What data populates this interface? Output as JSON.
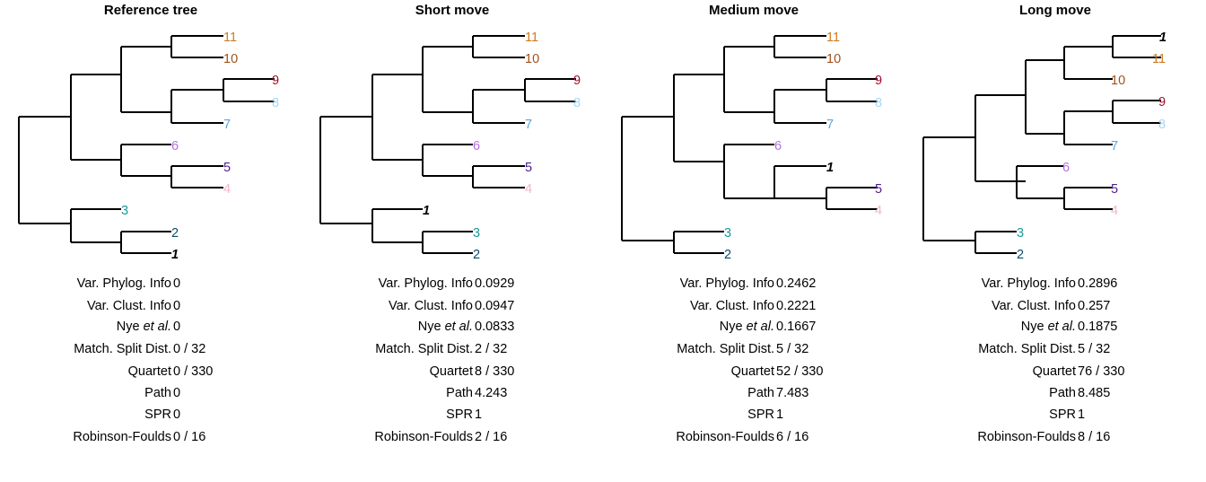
{
  "colors": {
    "1": "#000000",
    "2": "#0b4b6b",
    "3": "#1a9a9a",
    "4": "#f4b6c8",
    "5": "#4b1c8a",
    "6": "#b26ee0",
    "7": "#5aa6e0",
    "8": "#a8d8f4",
    "9": "#a0102a",
    "10": "#a0521a",
    "11": "#d07a20",
    "branch": "#000000"
  },
  "panels": [
    {
      "title": "Reference tree",
      "metrics": [
        {
          "label": "Var. Phylog. Info",
          "value": "0"
        },
        {
          "label": "Var. Clust. Info",
          "value": "0"
        },
        {
          "label_pre": "Nye ",
          "label_em": "et al.",
          "value": "0"
        },
        {
          "label": "Match. Split Dist.",
          "value": "0 / 32"
        },
        {
          "label": "Quartet",
          "value": "0 / 330"
        },
        {
          "label": "Path",
          "value": "0"
        },
        {
          "label": "SPR",
          "value": "0"
        },
        {
          "label": "Robinson-Foulds",
          "value": "0 / 16"
        }
      ]
    },
    {
      "title": "Short move",
      "metrics": [
        {
          "label": "Var. Phylog. Info",
          "value": "0.0929"
        },
        {
          "label": "Var. Clust. Info",
          "value": "0.0947"
        },
        {
          "label_pre": "Nye ",
          "label_em": "et al.",
          "value": "0.0833"
        },
        {
          "label": "Match. Split Dist.",
          "value": "2 / 32"
        },
        {
          "label": "Quartet",
          "value": "8 / 330"
        },
        {
          "label": "Path",
          "value": "4.243"
        },
        {
          "label": "SPR",
          "value": "1"
        },
        {
          "label": "Robinson-Foulds",
          "value": "2 / 16"
        }
      ]
    },
    {
      "title": "Medium move",
      "metrics": [
        {
          "label": "Var. Phylog. Info",
          "value": "0.2462"
        },
        {
          "label": "Var. Clust. Info",
          "value": "0.2221"
        },
        {
          "label_pre": "Nye ",
          "label_em": "et al.",
          "value": "0.1667"
        },
        {
          "label": "Match. Split Dist.",
          "value": "5 / 32"
        },
        {
          "label": "Quartet",
          "value": "52 / 330"
        },
        {
          "label": "Path",
          "value": "7.483"
        },
        {
          "label": "SPR",
          "value": "1"
        },
        {
          "label": "Robinson-Foulds",
          "value": "6 / 16"
        }
      ]
    },
    {
      "title": "Long move",
      "metrics": [
        {
          "label": "Var. Phylog. Info",
          "value": "0.2896"
        },
        {
          "label": "Var. Clust. Info",
          "value": "0.257"
        },
        {
          "label_pre": "Nye ",
          "label_em": "et al.",
          "value": "0.1875"
        },
        {
          "label": "Match. Split Dist.",
          "value": "5 / 32"
        },
        {
          "label": "Quartet",
          "value": "76 / 330"
        },
        {
          "label": "Path",
          "value": "8.485"
        },
        {
          "label": "SPR",
          "value": "1"
        },
        {
          "label": "Robinson-Foulds",
          "value": "8 / 16"
        }
      ]
    }
  ]
}
